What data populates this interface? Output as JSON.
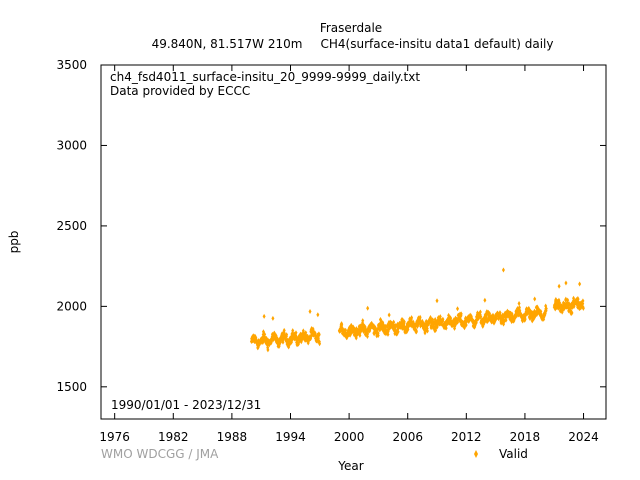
{
  "chart_data": {
    "type": "scatter",
    "title_line1": "Fraserdale",
    "title_line2_left": "49.840N, 81.517W 210m",
    "title_line2_right": "CH4(surface-insitu data1 default) daily",
    "file_label": "ch4_fsd4011_surface-insitu_20_9999-9999_daily.txt",
    "provider_label": "Data provided by ECCC",
    "date_range_label": "1990/01/01 - 2023/12/31",
    "credit": "WMO WDCGG / JMA",
    "xlabel": "Year",
    "ylabel": "ppb",
    "xlim": [
      1974.6,
      2026.3
    ],
    "ylim": [
      1300,
      3500
    ],
    "x_ticks": [
      1976,
      1982,
      1988,
      1994,
      2000,
      2006,
      2012,
      2018,
      2024
    ],
    "y_ticks": [
      1500,
      2000,
      2500,
      3000,
      3500
    ],
    "legend": {
      "label": "Valid",
      "position": "bottom-right"
    },
    "series": [
      {
        "name": "Valid",
        "color": "#ffa500",
        "segments": [
          {
            "x_start": 1990.0,
            "x_end": 1997.0,
            "base": 1780,
            "trend": 5.0,
            "amplitude": 18,
            "noise": 22
          },
          {
            "x_start": 1999.0,
            "x_end": 2020.2,
            "base": 1842,
            "trend": 5.4,
            "amplitude": 20,
            "noise": 22
          },
          {
            "x_start": 2021.0,
            "x_end": 2024.0,
            "base": 1993,
            "trend": 8.0,
            "amplitude": 20,
            "noise": 25
          }
        ],
        "spikes": [
          [
            1991.3,
            1938
          ],
          [
            1992.2,
            1925
          ],
          [
            1996.0,
            1968
          ],
          [
            1996.8,
            1948
          ],
          [
            2001.9,
            1988
          ],
          [
            2004.1,
            1946
          ],
          [
            2009.0,
            2035
          ],
          [
            2011.1,
            1985
          ],
          [
            2013.9,
            2038
          ],
          [
            2015.8,
            2226
          ],
          [
            2017.4,
            2018
          ],
          [
            2019.0,
            2046
          ],
          [
            2021.5,
            2125
          ],
          [
            2022.2,
            2145
          ],
          [
            2023.6,
            2139
          ]
        ]
      }
    ]
  }
}
